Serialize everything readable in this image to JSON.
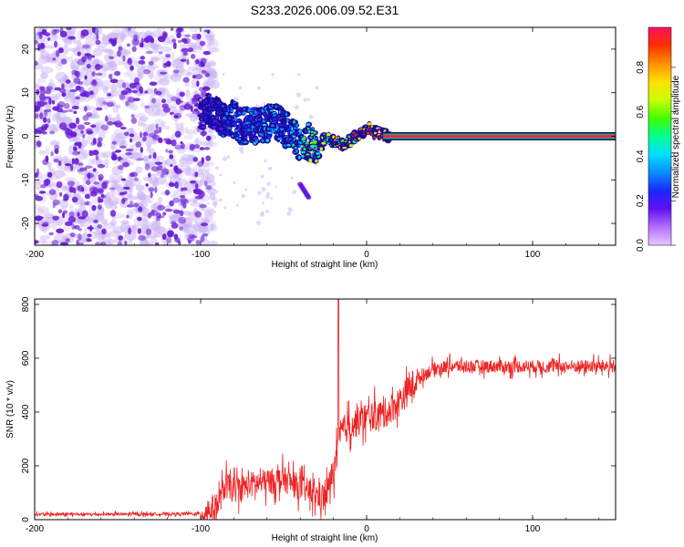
{
  "title": "S233.2026.006.09.52.E31",
  "colors": {
    "background": "#ffffff",
    "snr_line": "#ee2222",
    "spec_scatter": "#6a1fd6",
    "spec_haze": "#c9b2f5"
  },
  "colorbar": {
    "label": "Normalized spectral amplitude",
    "ticks": [
      "0.0",
      "0.2",
      "0.4",
      "0.6",
      "0.8"
    ],
    "tick_values": [
      0.0,
      0.2,
      0.4,
      0.6,
      0.8
    ],
    "range": [
      0,
      0.98
    ],
    "palette": [
      "#e6c8ff",
      "#b470ff",
      "#6010f0",
      "#1828ff",
      "#0a8cff",
      "#00e0ff",
      "#00ff90",
      "#40ff00",
      "#c8ff00",
      "#ffe000",
      "#ff9000",
      "#ff3000",
      "#ff1060"
    ]
  },
  "chart_data": [
    {
      "type": "heatmap",
      "name": "spectrogram",
      "xlabel": "Height of straight line (km)",
      "ylabel": "Frequency (Hz)",
      "xlim": [
        -200,
        150
      ],
      "ylim": [
        -25,
        25
      ],
      "xticks": [
        -200,
        -100,
        0,
        100
      ],
      "xtick_labels": [
        "-200",
        "-100",
        "0",
        "100"
      ],
      "yticks": [
        -20,
        -10,
        0,
        10,
        20
      ],
      "ytick_labels": [
        "-20",
        "-10",
        "0",
        "10",
        "20"
      ],
      "noise_region_x": [
        -200,
        -95
      ],
      "signal_track": {
        "x": [
          -100,
          -95,
          -90,
          -85,
          -80,
          -75,
          -70,
          -65,
          -60,
          -55,
          -50,
          -45,
          -40,
          -35,
          -30,
          -25,
          -20,
          -15,
          -10,
          -5,
          0,
          5,
          10,
          15,
          150
        ],
        "y": [
          5,
          6,
          5,
          3,
          4,
          2,
          3,
          2,
          3,
          4,
          2,
          1,
          -2,
          -1,
          -4,
          0,
          -1,
          -2,
          -1,
          0,
          2,
          1,
          0.5,
          0,
          0
        ],
        "amplitude": [
          0.2,
          0.25,
          0.3,
          0.3,
          0.35,
          0.3,
          0.35,
          0.35,
          0.4,
          0.4,
          0.4,
          0.45,
          0.5,
          0.55,
          0.6,
          0.65,
          0.7,
          0.75,
          0.8,
          0.85,
          0.9,
          0.92,
          0.95,
          0.97,
          0.98
        ]
      },
      "isolated_feature": {
        "x": [
          -40,
          -35
        ],
        "y": [
          -11,
          -14
        ]
      }
    },
    {
      "type": "line",
      "name": "snr",
      "xlabel": "Height of straight line (km)",
      "ylabel": "SNR (10 * v/v)",
      "xlim": [
        -200,
        150
      ],
      "ylim": [
        0,
        820
      ],
      "xticks": [
        -200,
        -100,
        0,
        100
      ],
      "xtick_labels": [
        "-200",
        "-100",
        "0",
        "100"
      ],
      "yticks": [
        0,
        200,
        400,
        600,
        800
      ],
      "ytick_labels": [
        "0",
        "200",
        "400",
        "600",
        "800"
      ],
      "series": [
        {
          "name": "SNR",
          "x": [
            -200,
            -150,
            -100,
            -90,
            -85,
            -80,
            -70,
            -60,
            -50,
            -40,
            -30,
            -25,
            -20,
            -17,
            -15,
            -10,
            0,
            10,
            20,
            25,
            30,
            40,
            50,
            100,
            150
          ],
          "y": [
            20,
            20,
            22,
            50,
            130,
            110,
            130,
            140,
            150,
            120,
            90,
            80,
            180,
            260,
            330,
            350,
            380,
            390,
            440,
            480,
            520,
            560,
            570,
            570,
            570
          ],
          "spike": {
            "x": -17,
            "y": 820
          }
        }
      ]
    }
  ]
}
